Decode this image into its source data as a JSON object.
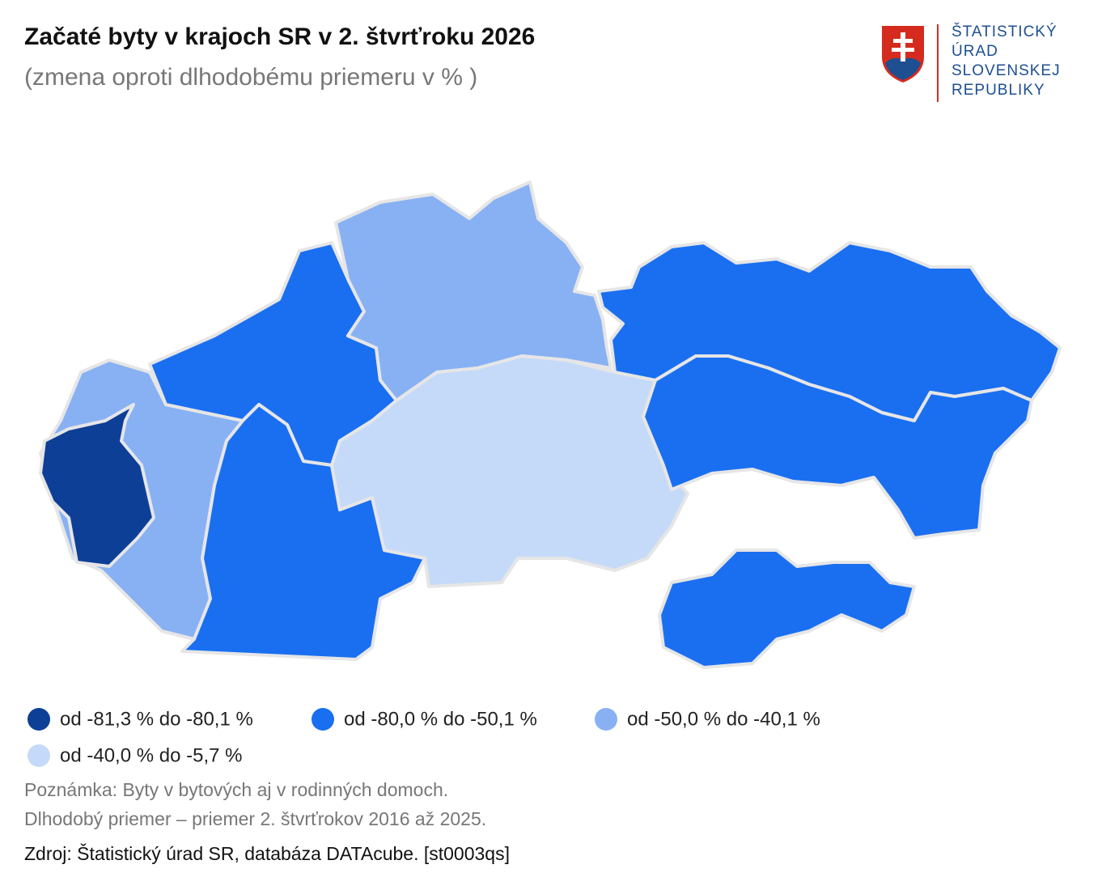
{
  "header": {
    "title": "Začaté byty v krajoch SR v 2. štvrťroku 2026",
    "subtitle": "(zmena oproti dlhodobému priemeru v % )"
  },
  "logo": {
    "lines": [
      "ŠTATISTICKÝ",
      "ÚRAD",
      "SLOVENSKEJ",
      "REPUBLIKY"
    ]
  },
  "legend": [
    {
      "label": "od -81,3 % do -80,1 %",
      "color": "#0e3f97"
    },
    {
      "label": "od -80,0 % do -50,1 %",
      "color": "#1a6ff1"
    },
    {
      "label": "od -50,0 % do -40,1 %",
      "color": "#88b1f4"
    },
    {
      "label": "od -40,0 % do -5,7 %",
      "color": "#c5daf8"
    }
  ],
  "notes": [
    "Poznámka: Byty v bytových aj v rodinných domoch.",
    "Dlhodobý priemer – priemer 2. štvrťrokov 2016 až 2025."
  ],
  "source": "Zdroj: Štatistický úrad SR, databáza DATAcube.  [st0003qs]"
}
